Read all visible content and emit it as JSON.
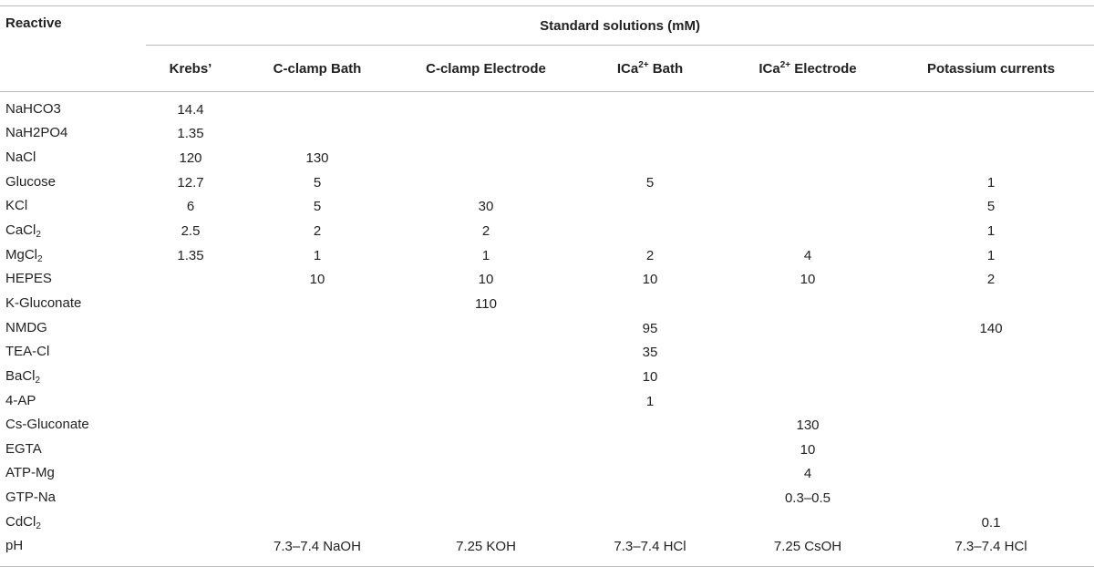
{
  "header": {
    "row_label": "Reactive",
    "group": "Standard solutions (mM)",
    "columns": [
      {
        "main": "Krebs’",
        "sup": "",
        "tail": ""
      },
      {
        "main": "C-clamp Bath",
        "sup": "",
        "tail": ""
      },
      {
        "main": "C-clamp Electrode",
        "sup": "",
        "tail": ""
      },
      {
        "main": "ICa",
        "sup": "2+",
        "tail": " Bath"
      },
      {
        "main": "ICa",
        "sup": "2+",
        "tail": " Electrode"
      },
      {
        "main": "Potassium currents",
        "sup": "",
        "tail": ""
      }
    ]
  },
  "rows": [
    {
      "name": "NaHCO3",
      "sub": "",
      "values": [
        "14.4",
        "",
        "",
        "",
        "",
        ""
      ]
    },
    {
      "name": "NaH2PO4",
      "sub": "",
      "values": [
        "1.35",
        "",
        "",
        "",
        "",
        ""
      ]
    },
    {
      "name": "NaCl",
      "sub": "",
      "values": [
        "120",
        "130",
        "",
        "",
        "",
        ""
      ]
    },
    {
      "name": "Glucose",
      "sub": "",
      "values": [
        "12.7",
        "5",
        "",
        "5",
        "",
        "1"
      ]
    },
    {
      "name": "KCl",
      "sub": "",
      "values": [
        "6",
        "5",
        "30",
        "",
        "",
        "5"
      ]
    },
    {
      "name": "CaCl",
      "sub": "2",
      "values": [
        "2.5",
        "2",
        "2",
        "",
        "",
        "1"
      ]
    },
    {
      "name": "MgCl",
      "sub": "2",
      "values": [
        "1.35",
        "1",
        "1",
        "2",
        "4",
        "1"
      ]
    },
    {
      "name": "HEPES",
      "sub": "",
      "values": [
        "",
        "10",
        "10",
        "10",
        "10",
        "2"
      ]
    },
    {
      "name": "K-Gluconate",
      "sub": "",
      "values": [
        "",
        "",
        "110",
        "",
        "",
        ""
      ]
    },
    {
      "name": "NMDG",
      "sub": "",
      "values": [
        "",
        "",
        "",
        "95",
        "",
        "140"
      ]
    },
    {
      "name": "TEA-Cl",
      "sub": "",
      "values": [
        "",
        "",
        "",
        "35",
        "",
        ""
      ]
    },
    {
      "name": "BaCl",
      "sub": "2",
      "values": [
        "",
        "",
        "",
        "10",
        "",
        ""
      ]
    },
    {
      "name": "4-AP",
      "sub": "",
      "values": [
        "",
        "",
        "",
        "1",
        "",
        ""
      ]
    },
    {
      "name": "Cs-Gluconate",
      "sub": "",
      "values": [
        "",
        "",
        "",
        "",
        "130",
        ""
      ]
    },
    {
      "name": "EGTA",
      "sub": "",
      "values": [
        "",
        "",
        "",
        "",
        "10",
        ""
      ]
    },
    {
      "name": "ATP-Mg",
      "sub": "",
      "values": [
        "",
        "",
        "",
        "",
        "4",
        ""
      ]
    },
    {
      "name": "GTP-Na",
      "sub": "",
      "values": [
        "",
        "",
        "",
        "",
        "0.3–0.5",
        ""
      ]
    },
    {
      "name": "CdCl",
      "sub": "2",
      "values": [
        "",
        "",
        "",
        "",
        "",
        "0.1"
      ]
    },
    {
      "name": "pH",
      "sub": "",
      "values": [
        "",
        "7.3–7.4 NaOH",
        "7.25 KOH",
        "7.3–7.4 HCl",
        "7.25 CsOH",
        "7.3–7.4 HCl"
      ]
    }
  ]
}
